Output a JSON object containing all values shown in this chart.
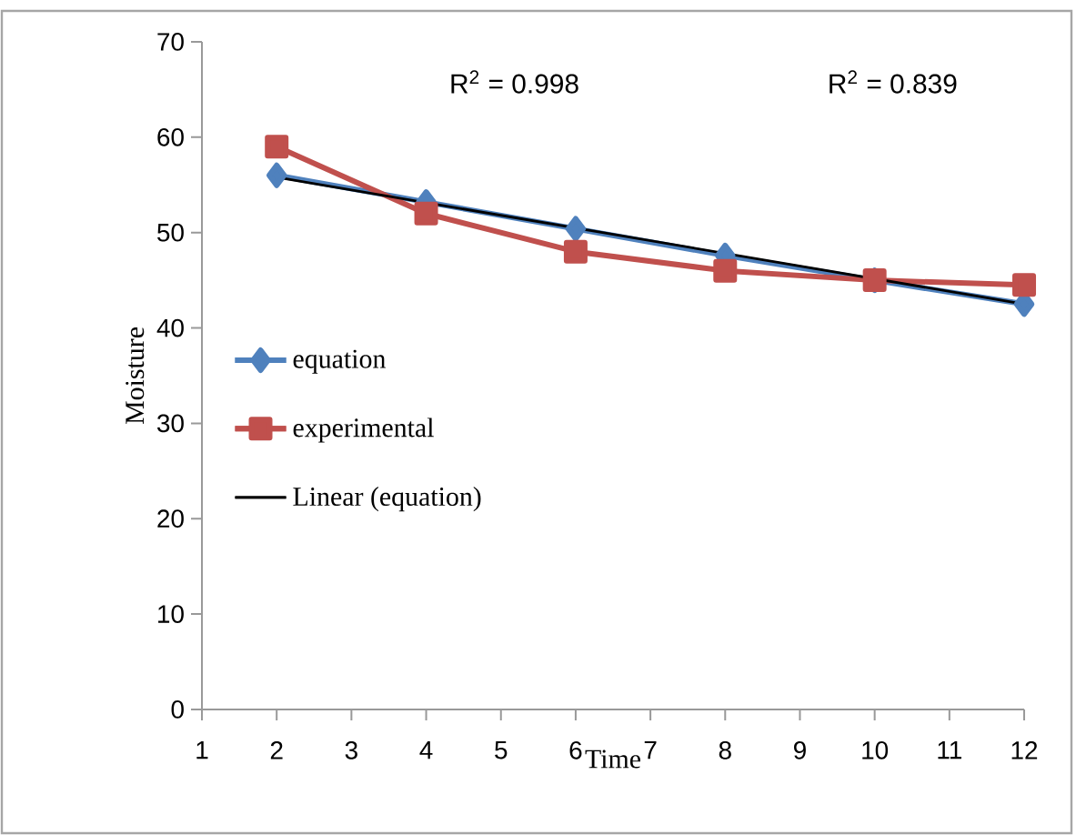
{
  "chart_data": {
    "type": "line",
    "xlabel": "Time",
    "ylabel": "Moisture",
    "x": [
      2,
      4,
      6,
      8,
      10,
      12
    ],
    "series": [
      {
        "name": "equation",
        "color": "#4f81bd",
        "values": [
          56,
          53.2,
          50.4,
          47.6,
          45,
          42.5
        ],
        "marker": "diamond"
      },
      {
        "name": "experimental",
        "color": "#c0504d",
        "values": [
          59,
          52,
          48,
          46,
          45,
          44.5
        ],
        "marker": "square"
      },
      {
        "name": "Linear (equation)",
        "color": "#000000",
        "x": [
          2,
          12
        ],
        "values": [
          55.8,
          42.5
        ],
        "marker": "none"
      }
    ],
    "annotations": [
      "R$^{2}$ = 0.998",
      "R$^{2}$ = 0.839"
    ],
    "xlim": [
      1,
      12
    ],
    "xticks": [
      1,
      2,
      3,
      4,
      5,
      6,
      7,
      8,
      9,
      10,
      11,
      12
    ],
    "ylim": [
      0,
      70
    ],
    "yticks": [
      0,
      10,
      20,
      30,
      40,
      50,
      60,
      70
    ],
    "grid": false,
    "legend": "left",
    "line_style": "solid"
  }
}
